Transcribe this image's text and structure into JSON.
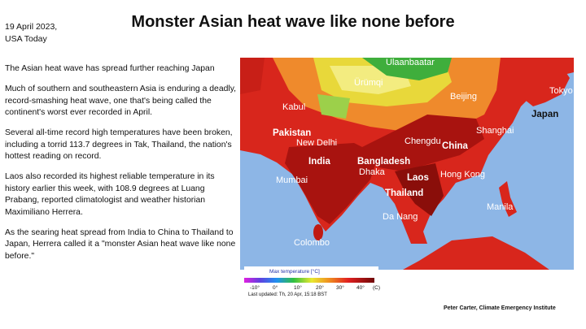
{
  "header": {
    "date": "19 April 2023,",
    "source": "USA Today",
    "title": "Monster Asian heat wave like none before"
  },
  "body": {
    "paragraphs": [
      "The Asian heat wave has spread further reaching Japan",
      "Much of southern and southeastern Asia is enduring a deadly, record-smashing heat wave, one that's being called the continent's worst ever recorded in April.",
      "Several all-time record high temperatures have been broken, including a torrid 113.7 degrees in Tak, Thailand, the nation's hottest reading on record.",
      "Laos also recorded its highest reliable temperature in its history earlier this week, with 108.9 degrees at Luang Prabang, reported climatologist and weather historian Maximiliano Herrera.",
      "As the searing heat spread from India to China to Thailand to Japan, Herrera called it a \"monster Asian heat wave like none before.\""
    ]
  },
  "map": {
    "labels": [
      "Ulaanbaatar",
      "Ürümqi",
      "Beijing",
      "Tokyo",
      "Japan",
      "Kabul",
      "Pakistan",
      "New Delhi",
      "Chengdu",
      "Shanghai",
      "China",
      "India",
      "Bangladesh",
      "Dhaka",
      "Laos",
      "Hong Kong",
      "Mumbai",
      "Thailand",
      "Manila",
      "Da Nang",
      "Colombo"
    ],
    "legend": {
      "title": "Max temperature [°C]",
      "ticks": [
        "-10°",
        "0°",
        "10°",
        "20°",
        "30°",
        "40°",
        "(C)"
      ],
      "updated": "Last updated: Th, 20 Apr, 15:18 BST"
    }
  },
  "credit": "Peter Carter, Climate Emergency Institute"
}
